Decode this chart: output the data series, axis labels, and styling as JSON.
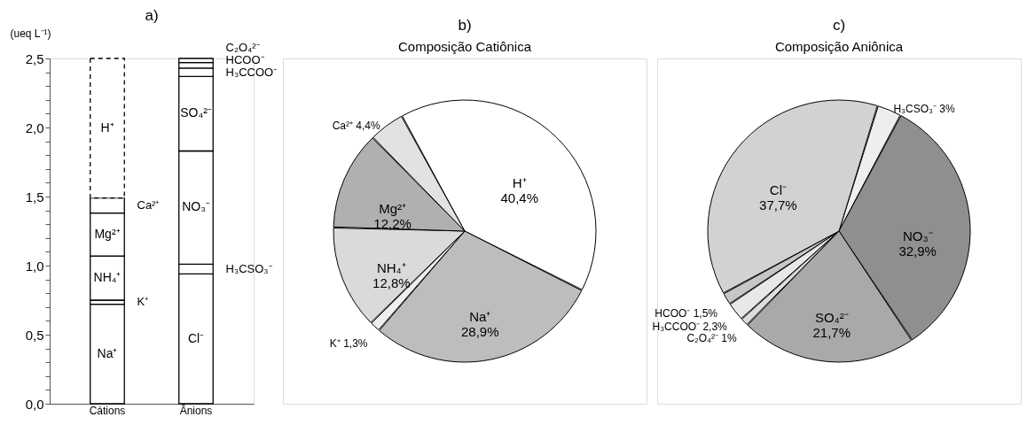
{
  "chart_data": [
    {
      "type": "bar",
      "title": "a)",
      "ylabel": "(ueq L⁻¹)",
      "stacked": true,
      "categories": [
        "Cátions",
        "Ânions"
      ],
      "series": [
        {
          "name": "Na⁺",
          "color": "#ffffff",
          "values": [
            0.72,
            null
          ]
        },
        {
          "name": "K⁺",
          "color": "#ffffff",
          "values": [
            0.03,
            null
          ]
        },
        {
          "name": "NH₄⁺",
          "color": "#ffffff",
          "values": [
            0.32,
            null
          ]
        },
        {
          "name": "Mg²⁺",
          "color": "#ffffff",
          "values": [
            0.31,
            null
          ]
        },
        {
          "name": "Ca²⁺",
          "color": "#ffffff",
          "values": [
            0.11,
            null
          ]
        },
        {
          "name": "H⁺",
          "color": "#ffffff",
          "values": [
            1.01,
            null
          ],
          "line_style": "dashed"
        },
        {
          "name": "Cl⁻",
          "color": "#ffffff",
          "values": [
            null,
            0.94
          ]
        },
        {
          "name": "H₃CSO₃⁻",
          "color": "#ffffff",
          "values": [
            null,
            0.07
          ]
        },
        {
          "name": "NO₃⁻",
          "color": "#ffffff",
          "values": [
            null,
            0.82
          ]
        },
        {
          "name": "SO₄²⁻",
          "color": "#ffffff",
          "values": [
            null,
            0.54
          ]
        },
        {
          "name": "H₃CCOO⁻",
          "color": "#ffffff",
          "values": [
            null,
            0.06
          ]
        },
        {
          "name": "HCOO⁻",
          "color": "#ffffff",
          "values": [
            null,
            0.04
          ]
        },
        {
          "name": "C₂O₄²⁻",
          "color": "#ffffff",
          "values": [
            null,
            0.03
          ]
        }
      ],
      "ylim": [
        0,
        2.5
      ],
      "yticks": [
        {
          "value": 0,
          "label": "0,0"
        },
        {
          "value": 0.1,
          "label": null
        },
        {
          "value": 0.2,
          "label": null
        },
        {
          "value": 0.3,
          "label": null
        },
        {
          "value": 0.4,
          "label": null
        },
        {
          "value": 0.5,
          "label": "0,5"
        },
        {
          "value": 0.6,
          "label": null
        },
        {
          "value": 0.7,
          "label": null
        },
        {
          "value": 0.8,
          "label": null
        },
        {
          "value": 0.9,
          "label": null
        },
        {
          "value": 1.0,
          "label": "1,0"
        },
        {
          "value": 1.1,
          "label": null
        },
        {
          "value": 1.2,
          "label": null
        },
        {
          "value": 1.3,
          "label": null
        },
        {
          "value": 1.4,
          "label": null
        },
        {
          "value": 1.5,
          "label": "1,5"
        },
        {
          "value": 1.6,
          "label": null
        },
        {
          "value": 1.7,
          "label": null
        },
        {
          "value": 1.8,
          "label": null
        },
        {
          "value": 1.9,
          "label": null
        },
        {
          "value": 2.0,
          "label": "2,0"
        },
        {
          "value": 2.1,
          "label": null
        },
        {
          "value": 2.2,
          "label": null
        },
        {
          "value": 2.3,
          "label": null
        },
        {
          "value": 2.4,
          "label": null
        },
        {
          "value": 2.5,
          "label": "2,5"
        }
      ],
      "grid": false
    },
    {
      "type": "pie",
      "title": "b)",
      "subtitle": "Composição Catiônica",
      "categories": [
        "H⁺",
        "Na⁺",
        "K⁺",
        "NH₄⁺",
        "Mg²⁺",
        "Ca²⁺"
      ],
      "values": [
        40.4,
        28.9,
        1.3,
        12.8,
        12.2,
        4.4
      ],
      "value_labels": [
        "40,4%",
        "28,9%",
        "1,3%",
        "12,8%",
        "12,2%",
        "4,4%"
      ],
      "colors": [
        "#ffffff",
        "#bdbdbd",
        "#eeeeee",
        "#dadada",
        "#b0b0b0",
        "#e2e2e2"
      ]
    },
    {
      "type": "pie",
      "title": "c)",
      "subtitle": "Composição Aniônica",
      "categories": [
        "H₃CSO₃⁻",
        "NO₃⁻",
        "SO₄²⁻",
        "C₂O₄²⁻",
        "H₃CCOO⁻",
        "HCOO⁻",
        "Cl⁻"
      ],
      "values": [
        3,
        32.9,
        21.7,
        1,
        2.3,
        1.5,
        37.7
      ],
      "value_labels": [
        "3%",
        "32,9%",
        "21,7%",
        "1%",
        "2,3%",
        "1,5%",
        "37,7%"
      ],
      "colors": [
        "#eeeeee",
        "#8f8f8f",
        "#a9a9a9",
        "#dddddd",
        "#e8e8e8",
        "#c6c6c6",
        "#d2d2d2"
      ]
    }
  ]
}
